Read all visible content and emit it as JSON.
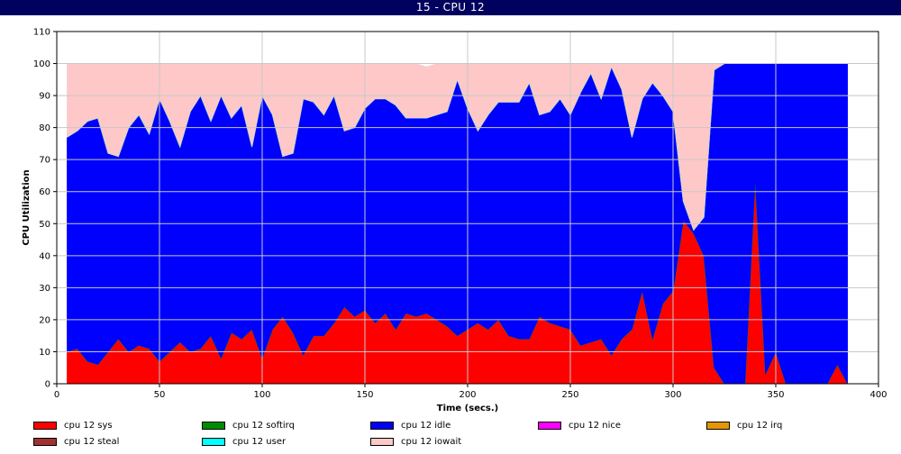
{
  "window": {
    "title": "15 - CPU 12"
  },
  "chart_data": {
    "type": "area",
    "title": "15 - CPU 12",
    "xlabel": "Time (secs.)",
    "ylabel": "CPU Utilization",
    "xlim": [
      0,
      400
    ],
    "ylim": [
      0,
      110
    ],
    "x_ticks": [
      0,
      50,
      100,
      150,
      200,
      250,
      300,
      350,
      400
    ],
    "y_ticks": [
      0,
      10,
      20,
      30,
      40,
      50,
      60,
      70,
      80,
      90,
      100,
      110
    ],
    "grid": true,
    "stacked": true,
    "x": [
      5,
      10,
      15,
      20,
      25,
      30,
      35,
      40,
      45,
      50,
      55,
      60,
      65,
      70,
      75,
      80,
      85,
      90,
      95,
      100,
      105,
      110,
      115,
      120,
      125,
      130,
      135,
      140,
      145,
      150,
      155,
      160,
      165,
      170,
      175,
      180,
      185,
      190,
      195,
      200,
      205,
      210,
      215,
      220,
      225,
      230,
      235,
      240,
      245,
      250,
      255,
      260,
      265,
      270,
      275,
      280,
      285,
      290,
      295,
      300,
      305,
      310,
      315,
      320,
      325,
      330,
      335,
      340,
      345,
      350,
      355,
      360,
      365,
      370,
      375,
      380,
      385
    ],
    "series": [
      {
        "name": "cpu 12 sys",
        "color": "#ff0000",
        "values": [
          10,
          11,
          7,
          6,
          10,
          14,
          10,
          12,
          11,
          7,
          10,
          13,
          10,
          11,
          15,
          8,
          16,
          14,
          17,
          8,
          17,
          21,
          16,
          9,
          15,
          15,
          19,
          24,
          21,
          23,
          19,
          22,
          17,
          22,
          21,
          22,
          20,
          18,
          15,
          17,
          19,
          17,
          20,
          15,
          14,
          14,
          21,
          19,
          18,
          17,
          12,
          13,
          14,
          9,
          14,
          17,
          29,
          14,
          25,
          29,
          51,
          47,
          40,
          5,
          0,
          0,
          0,
          64,
          3,
          10,
          0,
          0,
          0,
          0,
          0,
          6,
          0
        ]
      },
      {
        "name": "cpu 12 softirq",
        "color": "#008c00",
        "values": [
          0,
          0,
          0,
          0,
          0,
          0,
          0,
          0,
          0,
          0,
          0,
          0,
          0,
          0,
          0,
          0,
          0,
          0,
          0,
          0,
          0,
          0,
          0,
          0,
          0,
          0,
          0,
          0,
          0,
          0,
          0,
          0,
          0,
          0,
          0,
          0,
          0,
          0,
          0,
          0,
          0,
          0,
          0,
          0,
          0,
          0,
          0,
          0,
          0,
          0,
          0,
          0,
          0,
          0,
          0,
          0,
          0,
          0,
          0,
          0,
          0,
          0,
          0,
          0,
          0,
          0,
          0,
          0,
          0,
          0,
          0,
          0,
          0,
          0,
          0,
          0,
          0
        ]
      },
      {
        "name": "cpu 12 idle",
        "color": "#0000ff",
        "values": [
          67,
          68,
          75,
          77,
          62,
          57,
          70,
          72,
          67,
          82,
          72,
          61,
          75,
          79,
          67,
          82,
          67,
          73,
          57,
          82,
          67,
          50,
          56,
          80,
          73,
          69,
          71,
          55,
          59,
          63,
          70,
          67,
          70,
          61,
          62,
          61,
          64,
          67,
          80,
          69,
          60,
          67,
          68,
          73,
          74,
          80,
          63,
          66,
          71,
          67,
          79,
          84,
          75,
          90,
          78,
          60,
          60,
          80,
          65,
          56,
          6,
          1,
          12,
          93,
          100,
          100,
          100,
          36,
          97,
          90,
          100,
          100,
          100,
          100,
          100,
          94,
          100
        ]
      },
      {
        "name": "cpu 12 nice",
        "color": "#ff00ff",
        "values": [
          0,
          0,
          0,
          0,
          0,
          0,
          0,
          0,
          0,
          0,
          0,
          0,
          0,
          0,
          0,
          0,
          0,
          0,
          0,
          0,
          0,
          0,
          0,
          0,
          0,
          0,
          0,
          0,
          0,
          0,
          0,
          0,
          0,
          0,
          0,
          0,
          0,
          0,
          0,
          0,
          0,
          0,
          0,
          0,
          0,
          0,
          0,
          0,
          0,
          0,
          0,
          0,
          0,
          0,
          0,
          0,
          0,
          0,
          0,
          0,
          0,
          0,
          0,
          0,
          0,
          0,
          0,
          0,
          0,
          0,
          0,
          0,
          0,
          0,
          0,
          0,
          0
        ]
      },
      {
        "name": "cpu 12 irq",
        "color": "#e69600",
        "values": [
          0,
          0,
          0,
          0,
          0,
          0,
          0,
          0,
          0,
          0,
          0,
          0,
          0,
          0,
          0,
          0,
          0,
          0,
          0,
          0,
          0,
          0,
          0,
          0,
          0,
          0,
          0,
          0,
          0,
          0,
          0,
          0,
          0,
          0,
          0,
          0,
          0,
          0,
          0,
          0,
          0,
          0,
          0,
          0,
          0,
          0,
          0,
          0,
          0,
          0,
          0,
          0,
          0,
          0,
          0,
          0,
          0,
          0,
          0,
          0,
          0,
          0,
          0,
          0,
          0,
          0,
          0,
          0,
          0,
          0,
          0,
          0,
          0,
          0,
          0,
          0,
          0
        ]
      },
      {
        "name": "cpu 12 steal",
        "color": "#a03232",
        "values": [
          0,
          0,
          0,
          0,
          0,
          0,
          0,
          0,
          0,
          0,
          0,
          0,
          0,
          0,
          0,
          0,
          0,
          0,
          0,
          0,
          0,
          0,
          0,
          0,
          0,
          0,
          0,
          0,
          0,
          0,
          0,
          0,
          0,
          0,
          0,
          0,
          0,
          0,
          0,
          0,
          0,
          0,
          0,
          0,
          0,
          0,
          0,
          0,
          0,
          0,
          0,
          0,
          0,
          0,
          0,
          0,
          0,
          0,
          0,
          0,
          0,
          0,
          0,
          0,
          0,
          0,
          0,
          0,
          0,
          0,
          0,
          0,
          0,
          0,
          0,
          0,
          0
        ]
      },
      {
        "name": "cpu 12 user",
        "color": "#00ffff",
        "values": [
          0,
          0,
          0,
          0,
          0,
          0,
          0,
          0,
          0,
          0,
          0,
          0,
          0,
          0,
          0,
          0,
          0,
          0,
          0,
          0,
          0,
          0,
          0,
          0,
          0,
          0,
          0,
          0,
          0,
          0,
          0,
          0,
          0,
          0,
          0,
          0,
          0,
          0,
          0,
          0,
          0,
          0,
          0,
          0,
          0,
          0,
          0,
          0,
          0,
          0,
          0,
          0,
          0,
          0,
          0,
          0,
          0,
          0,
          0,
          0,
          0,
          0,
          0,
          0,
          0,
          0,
          0,
          0,
          0,
          0,
          0,
          0,
          0,
          0,
          0,
          0,
          0
        ]
      },
      {
        "name": "cpu 12 iowait",
        "color": "#ffc8c8",
        "values": [
          23,
          21,
          18,
          17,
          28,
          29,
          20,
          16,
          22,
          11,
          18,
          26,
          15,
          10,
          18,
          10,
          17,
          13,
          26,
          10,
          16,
          29,
          28,
          11,
          12,
          16,
          10,
          21,
          20,
          14,
          11,
          11,
          13,
          17,
          17,
          16,
          16,
          15,
          5,
          14,
          21,
          16,
          12,
          12,
          12,
          6,
          16,
          15,
          11,
          16,
          9,
          3,
          11,
          1,
          8,
          23,
          11,
          6,
          10,
          15,
          43,
          52,
          48,
          2,
          0,
          0,
          0,
          0,
          0,
          0,
          0,
          0,
          0,
          0,
          0,
          0,
          0
        ]
      }
    ],
    "legend": {
      "position": "bottom",
      "columns": 5
    }
  }
}
